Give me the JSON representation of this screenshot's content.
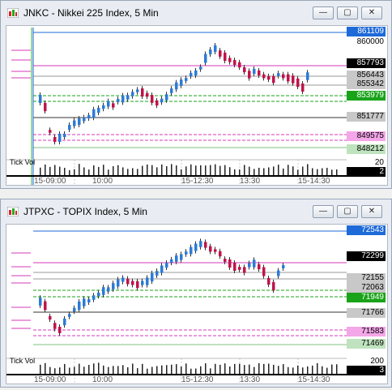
{
  "window1": {
    "title": "JNKC - Nikkei 225 Index, 5 Min",
    "buttons": {
      "minimize": "—",
      "restore": "▢",
      "close": "✕"
    },
    "tick_label": "Tick Vol",
    "x_labels": [
      "15-09:00",
      "10:00",
      "15-12:30",
      "13:30",
      "15-14:30"
    ],
    "price_labels": [
      {
        "text": "861109",
        "bg": "#1e6ad8",
        "fg": "#ffffff"
      },
      {
        "text": "860000",
        "bg": "#ffffff",
        "fg": "#000000"
      },
      {
        "text": "857793",
        "bg": "#000000",
        "fg": "#ffffff"
      },
      {
        "text": "856443",
        "bg": "#c8c8c8",
        "fg": "#000000"
      },
      {
        "text": "855342",
        "bg": "#c8c8c8",
        "fg": "#000000"
      },
      {
        "text": "853979",
        "bg": "#19a319",
        "fg": "#ffffff"
      },
      {
        "text": "851777",
        "bg": "#c8c8c8",
        "fg": "#000000"
      },
      {
        "text": "849575",
        "bg": "#f3a6e8",
        "fg": "#000000"
      },
      {
        "text": "848212",
        "bg": "#bfe3bf",
        "fg": "#000000"
      }
    ],
    "vol_labels": [
      {
        "text": "20",
        "bg": "#ffffff",
        "fg": "#000000"
      },
      {
        "text": "2",
        "bg": "#000000",
        "fg": "#ffffff"
      }
    ]
  },
  "window2": {
    "title": "JTPXC - TOPIX Index, 5 Min",
    "buttons": {
      "minimize": "—",
      "restore": "▢",
      "close": "✕"
    },
    "tick_label": "Tick Vol",
    "x_labels": [
      "15-09:00",
      "10:00",
      "15-12:30",
      "13:30",
      "15-14:30"
    ],
    "price_labels": [
      {
        "text": "72543",
        "bg": "#1e6ad8",
        "fg": "#ffffff"
      },
      {
        "text": "72299",
        "bg": "#000000",
        "fg": "#ffffff"
      },
      {
        "text": "72155",
        "bg": "#c8c8c8",
        "fg": "#000000"
      },
      {
        "text": "72063",
        "bg": "#c8c8c8",
        "fg": "#000000"
      },
      {
        "text": "71949",
        "bg": "#19a319",
        "fg": "#ffffff"
      },
      {
        "text": "71766",
        "bg": "#c8c8c8",
        "fg": "#000000"
      },
      {
        "text": "71583",
        "bg": "#f3a6e8",
        "fg": "#000000"
      },
      {
        "text": "71469",
        "bg": "#bfe3bf",
        "fg": "#000000"
      }
    ],
    "vol_labels": [
      {
        "text": "200",
        "bg": "#ffffff",
        "fg": "#000000"
      },
      {
        "text": "3",
        "bg": "#000000",
        "fg": "#ffffff"
      }
    ]
  },
  "colors": {
    "accent": "#1e6ad8",
    "up_candle": "#2c7bd6",
    "down_candle": "#c0134a",
    "pivot_pink": "#d63ab8",
    "pivot_green": "#19a319"
  }
}
